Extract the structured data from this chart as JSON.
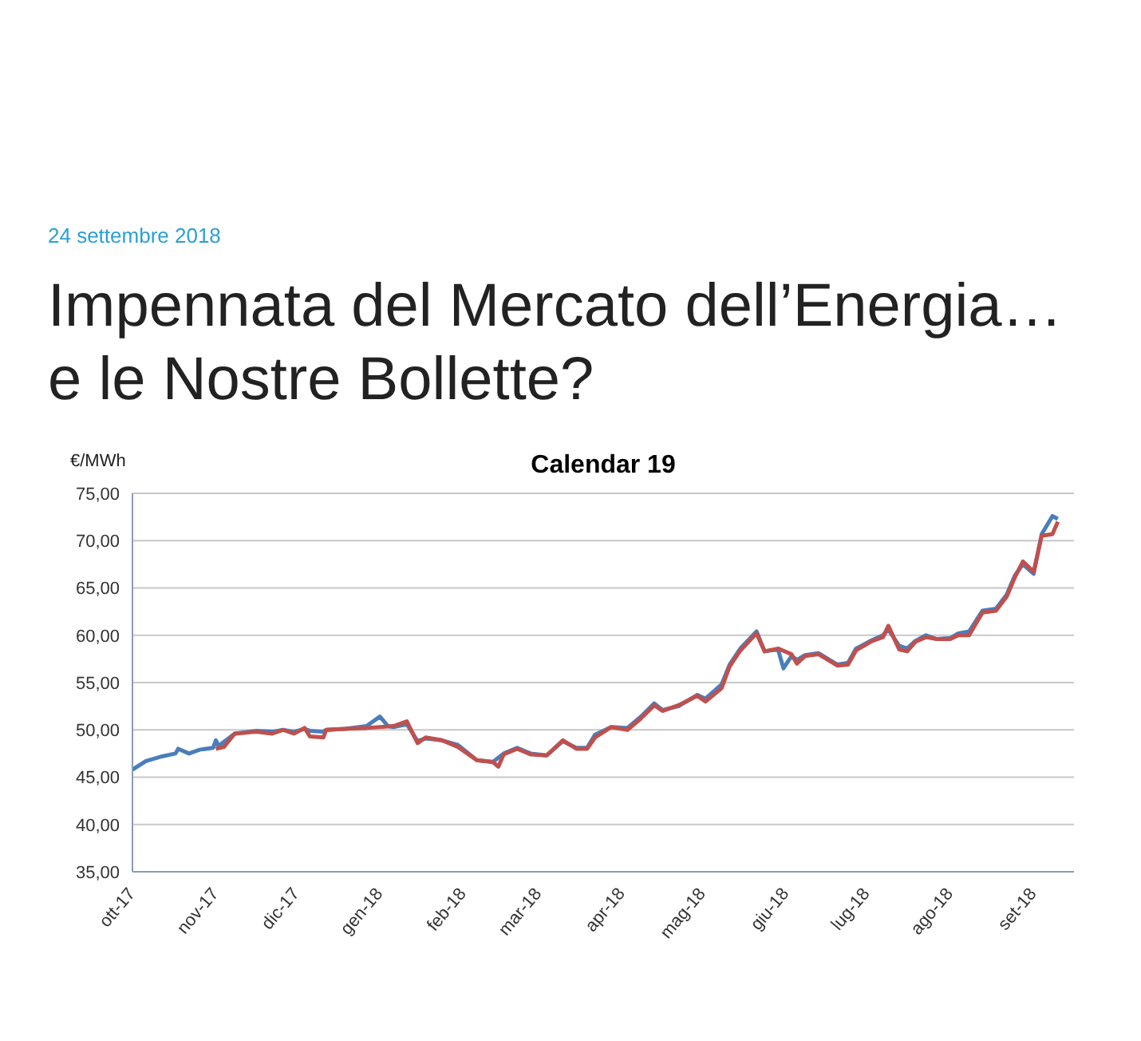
{
  "chart_data": {
    "type": "line",
    "title": "Calendar 19",
    "ylabel": "€/MWh",
    "annotations": [
      "24 settembre 2018",
      "Impennata del Mercato dell’Energia… e le Nostre Bollette?"
    ],
    "series": [
      {
        "color": "#4a7ebb",
        "x": [
          "2017-10-01",
          "2017-10-06",
          "2017-10-12",
          "2017-10-17",
          "2017-10-18",
          "2017-10-22",
          "2017-10-26",
          "2017-10-31",
          "2017-11-01",
          "2017-11-02",
          "2017-11-08",
          "2017-11-16",
          "2017-11-22",
          "2017-11-26",
          "2017-11-30",
          "2017-12-04",
          "2017-12-06",
          "2017-12-11",
          "2017-12-12",
          "2017-12-19",
          "2017-12-27",
          "2018-01-01",
          "2018-01-04",
          "2018-01-06",
          "2018-01-11",
          "2018-01-15",
          "2018-01-18",
          "2018-01-24",
          "2018-01-30",
          "2018-02-06",
          "2018-02-12",
          "2018-02-16",
          "2018-02-21",
          "2018-02-26",
          "2018-03-04",
          "2018-03-10",
          "2018-03-15",
          "2018-03-19",
          "2018-03-22",
          "2018-03-28",
          "2018-04-03",
          "2018-04-08",
          "2018-04-13",
          "2018-04-16",
          "2018-04-22",
          "2018-04-29",
          "2018-05-02",
          "2018-05-08",
          "2018-05-11",
          "2018-05-15",
          "2018-05-21",
          "2018-05-24",
          "2018-05-29",
          "2018-05-31",
          "2018-06-03",
          "2018-06-05",
          "2018-06-08",
          "2018-06-13",
          "2018-06-20",
          "2018-06-24",
          "2018-06-27",
          "2018-07-03",
          "2018-07-07",
          "2018-07-09",
          "2018-07-13",
          "2018-07-16",
          "2018-07-19",
          "2018-07-23",
          "2018-07-27",
          "2018-08-01",
          "2018-08-04",
          "2018-08-08",
          "2018-08-13",
          "2018-08-18",
          "2018-08-22",
          "2018-08-25",
          "2018-08-28",
          "2018-09-01",
          "2018-09-04",
          "2018-09-08",
          "2018-09-10"
        ],
        "values": [
          45.8,
          46.7,
          47.2,
          47.5,
          48.0,
          47.5,
          47.9,
          48.1,
          48.9,
          48.3,
          49.6,
          49.9,
          49.8,
          50.0,
          49.8,
          50.1,
          49.9,
          49.8,
          50.0,
          50.1,
          50.4,
          51.4,
          50.4,
          50.3,
          50.6,
          48.8,
          49.1,
          48.9,
          48.4,
          46.8,
          46.6,
          47.5,
          48.1,
          47.5,
          47.3,
          48.8,
          48.1,
          48.1,
          49.5,
          50.3,
          50.2,
          51.4,
          52.8,
          52.1,
          52.5,
          53.7,
          53.3,
          54.8,
          56.9,
          58.6,
          60.4,
          58.3,
          58.5,
          56.5,
          57.8,
          57.4,
          57.9,
          58.1,
          56.9,
          57.1,
          58.6,
          59.5,
          60.0,
          60.6,
          58.9,
          58.6,
          59.4,
          60.0,
          59.6,
          59.7,
          60.2,
          60.4,
          62.6,
          62.8,
          64.3,
          66.3,
          67.5,
          66.5,
          70.7,
          72.6,
          72.3
        ]
      },
      {
        "color": "#c0504d",
        "x": [
          "2017-11-01",
          "2017-11-04",
          "2017-11-08",
          "2017-11-16",
          "2017-11-22",
          "2017-11-26",
          "2017-11-30",
          "2017-12-04",
          "2017-12-06",
          "2017-12-11",
          "2017-12-12",
          "2017-12-19",
          "2017-12-27",
          "2018-01-06",
          "2018-01-11",
          "2018-01-15",
          "2018-01-18",
          "2018-01-24",
          "2018-01-30",
          "2018-02-06",
          "2018-02-12",
          "2018-02-14",
          "2018-02-16",
          "2018-02-21",
          "2018-02-26",
          "2018-03-04",
          "2018-03-10",
          "2018-03-15",
          "2018-03-19",
          "2018-03-22",
          "2018-03-28",
          "2018-04-03",
          "2018-04-08",
          "2018-04-13",
          "2018-04-16",
          "2018-04-22",
          "2018-04-29",
          "2018-05-02",
          "2018-05-08",
          "2018-05-11",
          "2018-05-15",
          "2018-05-21",
          "2018-05-24",
          "2018-05-29",
          "2018-06-03",
          "2018-06-05",
          "2018-06-08",
          "2018-06-13",
          "2018-06-20",
          "2018-06-24",
          "2018-06-27",
          "2018-07-03",
          "2018-07-07",
          "2018-07-09",
          "2018-07-13",
          "2018-07-16",
          "2018-07-19",
          "2018-07-23",
          "2018-07-27",
          "2018-08-01",
          "2018-08-04",
          "2018-08-08",
          "2018-08-13",
          "2018-08-18",
          "2018-08-22",
          "2018-08-25",
          "2018-08-28",
          "2018-09-01",
          "2018-09-04",
          "2018-09-08",
          "2018-09-10"
        ],
        "values": [
          48.0,
          48.2,
          49.6,
          49.8,
          49.6,
          50.0,
          49.6,
          50.2,
          49.3,
          49.2,
          50.0,
          50.1,
          50.2,
          50.4,
          50.9,
          48.6,
          49.2,
          48.9,
          48.2,
          46.8,
          46.6,
          46.1,
          47.4,
          48.0,
          47.4,
          47.3,
          48.9,
          48.0,
          48.0,
          49.2,
          50.3,
          50.0,
          51.2,
          52.6,
          52.0,
          52.6,
          53.6,
          53.0,
          54.4,
          56.7,
          58.4,
          60.2,
          58.3,
          58.6,
          58.0,
          57.0,
          57.8,
          58.0,
          56.8,
          56.9,
          58.4,
          59.4,
          59.8,
          61.0,
          58.5,
          58.3,
          59.3,
          59.8,
          59.6,
          59.6,
          60.0,
          60.0,
          62.4,
          62.6,
          64.1,
          66.1,
          67.8,
          66.7,
          70.5,
          70.7,
          72.0
        ]
      }
    ],
    "xlim": [
      "2017-10-01",
      "2018-09-16"
    ],
    "xticks": [
      {
        "value": "2017-10-01",
        "label": "ott-17"
      },
      {
        "value": "2017-11-01",
        "label": "nov-17"
      },
      {
        "value": "2017-12-01",
        "label": "dic-17"
      },
      {
        "value": "2018-01-01",
        "label": "gen-18"
      },
      {
        "value": "2018-02-01",
        "label": "feb-18"
      },
      {
        "value": "2018-03-01",
        "label": "mar-18"
      },
      {
        "value": "2018-04-01",
        "label": "apr-18"
      },
      {
        "value": "2018-05-01",
        "label": "mag-18"
      },
      {
        "value": "2018-06-01",
        "label": "giu-18"
      },
      {
        "value": "2018-07-01",
        "label": "lug-18"
      },
      {
        "value": "2018-08-01",
        "label": "ago-18"
      },
      {
        "value": "2018-09-01",
        "label": "set-18"
      }
    ],
    "ylim": [
      35,
      75
    ],
    "yticks": [
      {
        "value": 35,
        "label": "35,00"
      },
      {
        "value": 40,
        "label": "40,00"
      },
      {
        "value": 45,
        "label": "45,00"
      },
      {
        "value": 50,
        "label": "50,00"
      },
      {
        "value": 55,
        "label": "55,00"
      },
      {
        "value": 60,
        "label": "60,00"
      },
      {
        "value": 65,
        "label": "65,00"
      },
      {
        "value": 70,
        "label": "70,00"
      },
      {
        "value": 75,
        "label": "75,00"
      }
    ],
    "grid": "y",
    "marker": "none",
    "line_style": "solid"
  }
}
